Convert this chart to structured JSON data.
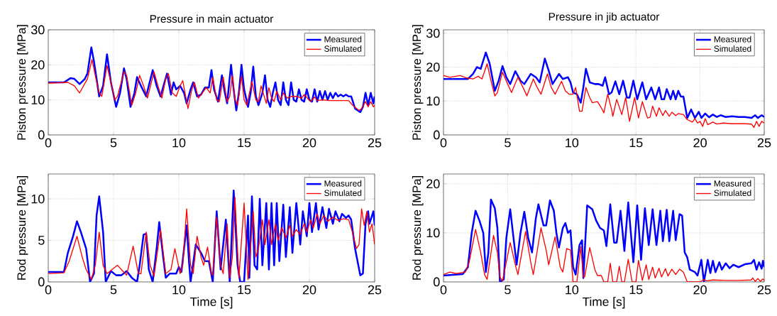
{
  "chart_data": [
    {
      "type": "line",
      "title": "Pressure in main actuator",
      "ylabel": "Piston pressure [MPa]",
      "xlim": [
        0,
        25
      ],
      "ylim": [
        0,
        30
      ],
      "xticks": [
        0,
        5,
        10,
        15,
        20,
        25
      ],
      "yticks": [
        0,
        10,
        20,
        30
      ],
      "grid": true,
      "legend": "top right",
      "series": [
        {
          "name": "Measured",
          "color": "#0000ff",
          "x": [
            0,
            1.2,
            1.7,
            2,
            2.4,
            2.8,
            3.0,
            3.3,
            3.5,
            3.9,
            4.2,
            4.5,
            4.8,
            5.2,
            5.5,
            5.8,
            6.0,
            6.3,
            6.6,
            6.8,
            7.1,
            7.5,
            7.7,
            8.0,
            8.3,
            8.6,
            8.9,
            9.1,
            9.4,
            9.6,
            9.8,
            10.1,
            10.4,
            10.6,
            10.9,
            11.1,
            11.4,
            11.7,
            12.0,
            12.3,
            12.5,
            12.7,
            13.0,
            13.3,
            13.5,
            13.7,
            14.0,
            14.2,
            14.4,
            14.6,
            14.8,
            15.0,
            15.3,
            15.5,
            15.7,
            15.9,
            16.1,
            16.4,
            16.6,
            16.8,
            17.0,
            17.2,
            17.4,
            17.6,
            17.8,
            18.0,
            18.2,
            18.4,
            18.6,
            18.8,
            19.0,
            19.2,
            19.4,
            19.6,
            19.8,
            20.0,
            20.2,
            20.4,
            20.6,
            20.8,
            21.0,
            21.2,
            21.4,
            21.6,
            21.8,
            22.0,
            22.2,
            22.4,
            22.6,
            22.8,
            23.0,
            23.2,
            23.5,
            23.9,
            24.1,
            24.3,
            24.5,
            24.7,
            24.9,
            25.0
          ],
          "values": [
            15,
            15,
            16.2,
            16,
            14.5,
            16,
            17.5,
            25,
            21,
            11,
            14,
            23,
            15,
            8,
            12,
            19,
            16,
            8,
            12,
            16.5,
            14,
            11,
            14,
            18.5,
            14,
            11,
            15,
            17.5,
            11.5,
            15,
            13,
            14,
            12,
            9,
            13,
            15,
            11,
            11.5,
            13.5,
            13.5,
            18.5,
            13,
            9.5,
            17,
            12.5,
            9,
            20,
            13,
            7,
            12,
            20,
            13,
            8,
            12,
            19.5,
            11,
            8.5,
            12,
            17,
            10,
            8,
            12,
            15,
            10,
            8.5,
            15,
            10,
            8.5,
            15,
            10,
            9.5,
            13,
            10,
            9.5,
            13,
            10,
            9.5,
            13,
            9.5,
            12.5,
            10,
            12.5,
            10,
            12,
            10.5,
            12,
            11,
            11.5,
            11,
            11.5,
            11,
            11,
            7.5,
            6.5,
            8,
            12,
            8.5,
            12,
            9,
            11
          ]
        },
        {
          "name": "Simulated",
          "color": "#ff0000",
          "x": [
            0,
            1.5,
            2.0,
            2.4,
            2.7,
            3.0,
            3.35,
            3.6,
            3.9,
            4.1,
            4.5,
            4.8,
            5.1,
            5.3,
            5.8,
            6.0,
            6.4,
            6.7,
            7.0,
            7.3,
            7.6,
            8.1,
            8.4,
            8.7,
            9.0,
            9.2,
            9.5,
            9.8,
            10.1,
            10.3,
            10.7,
            11.0,
            11.2,
            11.5,
            11.9,
            12.1,
            12.4,
            12.6,
            12.9,
            13.1,
            13.4,
            13.7,
            13.9,
            14.1,
            14.3,
            14.5,
            14.8,
            15.0,
            15.2,
            15.6,
            15.9,
            16.1,
            16.3,
            16.5,
            16.7,
            16.9,
            17.1,
            17.3,
            17.5,
            17.8,
            18.0,
            18.3,
            18.6,
            19.0,
            19.4,
            19.6,
            20.1,
            20.4,
            20.6,
            21.0,
            21.5,
            22.0,
            23.0,
            23.3,
            23.8,
            24.0,
            24.3,
            24.5,
            24.7,
            24.9,
            25.0
          ],
          "values": [
            14.8,
            15,
            14,
            12,
            14,
            16,
            21.5,
            17,
            12,
            11,
            19.8,
            15,
            10,
            11,
            18,
            17,
            8.5,
            12,
            17,
            14,
            10.5,
            18,
            14,
            10.5,
            16,
            17.5,
            12,
            11,
            14,
            15.5,
            7.5,
            13,
            15,
            10.5,
            12.5,
            13.5,
            12,
            16.5,
            10,
            9.5,
            16.5,
            9.5,
            11,
            17,
            10,
            8.5,
            16.8,
            10,
            8.5,
            15.2,
            10,
            9.5,
            14,
            11.5,
            9,
            13.5,
            10.5,
            9.5,
            12.5,
            10,
            12,
            10.5,
            11,
            11,
            10.5,
            11.5,
            9.5,
            10.8,
            9.8,
            10,
            9.8,
            9.8,
            9.8,
            8.5,
            7,
            7.5,
            9.5,
            8,
            9.5,
            8,
            8.5
          ]
        }
      ]
    },
    {
      "type": "line",
      "title": "Pressure in jib actuator",
      "ylabel": "Piston pressure [MPa]",
      "xlim": [
        0,
        25
      ],
      "ylim": [
        0,
        31
      ],
      "xticks": [
        0,
        5,
        10,
        15,
        20,
        25
      ],
      "yticks": [
        0,
        10,
        20,
        30
      ],
      "grid": true,
      "legend": "top right",
      "series": [
        {
          "name": "Measured",
          "color": "#0000ff",
          "x": [
            0,
            1.9,
            2.3,
            2.6,
            2.9,
            3.3,
            3.6,
            4.0,
            4.3,
            4.6,
            4.9,
            5.2,
            5.6,
            6.0,
            6.3,
            6.8,
            7.2,
            7.5,
            7.9,
            8.2,
            8.5,
            9.0,
            9.3,
            9.7,
            9.9,
            10.1,
            10.4,
            10.7,
            10.9,
            11.1,
            11.4,
            11.8,
            12.1,
            12.4,
            12.6,
            12.9,
            13.1,
            13.4,
            13.7,
            14.0,
            14.3,
            14.5,
            14.8,
            15.1,
            15.5,
            15.8,
            16.2,
            16.5,
            16.8,
            17.0,
            17.2,
            17.4,
            17.7,
            17.9,
            18.1,
            18.3,
            18.5,
            18.7,
            19.0,
            19.3,
            19.6,
            19.9,
            20.1,
            20.4,
            20.7,
            21.0,
            21.3,
            21.6,
            22.0,
            22.5,
            23.0,
            23.5,
            24.0,
            24.3,
            24.5,
            24.8,
            25.0
          ],
          "values": [
            16.5,
            16.5,
            18,
            20,
            19.5,
            24.3,
            21,
            13,
            16,
            20.3,
            17,
            15,
            18.8,
            16,
            15,
            18,
            17,
            15.5,
            22.5,
            19,
            15,
            18,
            16.5,
            17,
            15.5,
            12.5,
            12,
            9.5,
            14,
            19.5,
            15.5,
            15,
            15,
            14.5,
            17,
            12,
            12.5,
            15.8,
            12,
            16,
            11,
            11,
            16,
            10.5,
            15.5,
            10.5,
            14,
            10.5,
            14,
            10.5,
            10.5,
            13.5,
            10.5,
            13,
            10.5,
            13,
            11.3,
            11.3,
            5,
            7.5,
            5,
            6.8,
            5,
            6.3,
            5.2,
            6,
            5.3,
            5.8,
            5.3,
            5.5,
            5.3,
            5.3,
            5,
            5.8,
            5,
            5.8,
            5.3
          ]
        },
        {
          "name": "Simulated",
          "color": "#ff0000",
          "x": [
            0,
            0.5,
            1.3,
            1.8,
            2.3,
            2.7,
            3.0,
            3.4,
            3.7,
            4.0,
            4.2,
            4.6,
            5.0,
            5.3,
            5.8,
            6.2,
            6.5,
            7.0,
            7.3,
            7.6,
            8.1,
            8.4,
            8.7,
            9.2,
            9.5,
            9.8,
            10.1,
            10.3,
            10.6,
            10.8,
            11.1,
            11.4,
            11.6,
            12.0,
            12.3,
            12.5,
            12.8,
            13.1,
            13.2,
            13.5,
            13.9,
            14.2,
            14.5,
            14.9,
            15.2,
            15.5,
            15.9,
            16.1,
            16.3,
            16.6,
            16.8,
            17.1,
            17.3,
            17.6,
            17.8,
            18.1,
            18.3,
            18.7,
            19.0,
            19.4,
            19.6,
            19.8,
            20.0,
            20.2,
            20.4,
            20.6,
            21.0,
            21.3,
            21.8,
            22.5,
            23.5,
            24.0,
            24.2,
            24.4,
            24.6,
            24.8,
            25.0
          ],
          "values": [
            17.5,
            17,
            17.5,
            16.8,
            16.5,
            17.3,
            16.5,
            21,
            16,
            11.5,
            12.5,
            18.5,
            15,
            12.5,
            17,
            14,
            11.5,
            16.5,
            14,
            12,
            18,
            14,
            12,
            15.8,
            13,
            12,
            12,
            14,
            7,
            7,
            14,
            11,
            9.5,
            9.8,
            8,
            6.5,
            12,
            7.5,
            5.5,
            10.5,
            6,
            11,
            4,
            11,
            5,
            9.8,
            5,
            5.2,
            8.5,
            5.5,
            8,
            5.7,
            7.2,
            5.5,
            6.7,
            5.7,
            6.3,
            6,
            4.5,
            3.8,
            4.8,
            3.5,
            4,
            2.5,
            4.8,
            3,
            3.8,
            3.2,
            3.5,
            3.3,
            3.3,
            3.2,
            2.2,
            4,
            2.5,
            4,
            3.5
          ]
        }
      ]
    },
    {
      "type": "line",
      "xlabel": "Time [s]",
      "ylabel": "Rod pressure [MPa]",
      "xlim": [
        0,
        25
      ],
      "ylim": [
        0,
        13
      ],
      "xticks": [
        0,
        5,
        10,
        15,
        20,
        25
      ],
      "yticks": [
        0,
        5,
        10
      ],
      "grid": true,
      "legend": "top right",
      "series": [
        {
          "name": "Measured",
          "color": "#0000ff",
          "x": [
            0,
            1.2,
            1.5,
            1.9,
            2.2,
            2.5,
            2.9,
            3.2,
            3.5,
            3.7,
            3.9,
            4.2,
            4.4,
            4.8,
            5.2,
            5.6,
            6.0,
            6.4,
            6.8,
            7.0,
            7.3,
            7.5,
            7.7,
            8.0,
            8.3,
            8.5,
            8.8,
            9.0,
            9.3,
            9.8,
            10.0,
            10.2,
            10.6,
            10.8,
            10.9,
            11.3,
            11.7,
            12.0,
            12.3,
            12.6,
            12.9,
            13.2,
            13.6,
            13.9,
            14.2,
            14.5,
            14.7,
            15.0,
            15.3,
            15.4,
            15.6,
            15.8,
            16.0,
            16.2,
            16.4,
            16.7,
            16.9,
            17.1,
            17.3,
            17.5,
            17.7,
            18.0,
            18.2,
            18.5,
            18.7,
            19.0,
            19.3,
            19.5,
            19.8,
            20.0,
            20.2,
            20.5,
            20.7,
            21.0,
            21.3,
            21.5,
            21.8,
            22.0,
            22.3,
            22.5,
            22.8,
            23.0,
            23.2,
            23.5,
            23.9,
            24.1,
            24.3,
            24.5,
            24.6,
            24.9,
            25.0
          ],
          "values": [
            1.2,
            1.2,
            3.5,
            5.5,
            7.3,
            6,
            4,
            0,
            1,
            8,
            10.3,
            6,
            0,
            1.3,
            0.8,
            0.8,
            1.3,
            0.5,
            0,
            2,
            5.7,
            5.8,
            1.5,
            0,
            4,
            7.2,
            3,
            0.5,
            1,
            1,
            1.8,
            1.2,
            6.8,
            2,
            0,
            4.5,
            3.5,
            2.5,
            2.5,
            0,
            8.5,
            1.5,
            7.5,
            0,
            11,
            2,
            0,
            0,
            8,
            0.5,
            10.3,
            2,
            1.5,
            10,
            2,
            9.5,
            1.5,
            9.5,
            2,
            9.5,
            2.5,
            9.3,
            3,
            9,
            3.5,
            9.5,
            4.5,
            8.5,
            5.5,
            9.5,
            6,
            9.5,
            6.3,
            9,
            6.5,
            8.8,
            7,
            8.5,
            7.3,
            8.2,
            7.7,
            8,
            7.5,
            4,
            0.8,
            1,
            7,
            8.5,
            7,
            8.5,
            6.8
          ]
        },
        {
          "name": "Simulated",
          "color": "#ff0000",
          "x": [
            0,
            1.2,
            1.6,
            2.2,
            2.6,
            2.9,
            3.3,
            3.6,
            3.9,
            4.2,
            4.5,
            5.3,
            5.6,
            6.0,
            6.5,
            6.9,
            7.1,
            7.5,
            7.8,
            8.1,
            8.6,
            9.0,
            9.4,
            9.7,
            10.1,
            10.3,
            10.6,
            10.9,
            11.1,
            11.4,
            11.7,
            11.9,
            12.2,
            12.5,
            12.6,
            12.9,
            13.2,
            13.4,
            13.7,
            13.9,
            14.1,
            14.3,
            14.6,
            15.0,
            15.3,
            15.7,
            15.9,
            16.1,
            16.4,
            16.6,
            16.9,
            17.1,
            17.4,
            17.6,
            17.9,
            18.2,
            18.5,
            18.7,
            19.0,
            19.3,
            19.6,
            19.8,
            20.1,
            20.3,
            20.6,
            20.8,
            21.1,
            21.4,
            21.8,
            22.2,
            22.6,
            23.0,
            23.3,
            23.6,
            23.8,
            24.0,
            24.2,
            24.4,
            24.6,
            24.8,
            25.0
          ],
          "values": [
            1,
            1.1,
            2.5,
            5.5,
            3,
            1.5,
            0.3,
            2,
            6,
            2,
            1,
            2,
            1.5,
            0.8,
            4.3,
            1,
            1,
            6,
            2,
            0.7,
            6.3,
            1,
            1.5,
            4,
            1,
            2,
            8.8,
            2,
            1,
            5.5,
            3,
            2,
            4.2,
            1,
            0.8,
            7.8,
            2,
            1,
            7,
            0.5,
            3,
            10.2,
            0.5,
            9.5,
            0.3,
            8.5,
            3,
            4,
            7.5,
            4.5,
            7.5,
            4.5,
            7,
            5,
            6.5,
            5.3,
            6.8,
            5.5,
            6.3,
            5.7,
            7,
            6,
            7.5,
            6.5,
            8.2,
            7,
            8,
            7.3,
            7.8,
            7.4,
            7.6,
            7.5,
            6,
            4,
            4.5,
            8.8,
            6.8,
            8.5,
            6,
            7,
            4.5
          ]
        }
      ]
    },
    {
      "type": "line",
      "xlabel": "Time [s]",
      "ylabel": "Rod pressure [MPa]",
      "xlim": [
        0,
        25
      ],
      "ylim": [
        0,
        22
      ],
      "xticks": [
        0,
        5,
        10,
        15,
        20,
        25
      ],
      "yticks": [
        0,
        10,
        20
      ],
      "grid": true,
      "legend": "top right",
      "series": [
        {
          "name": "Measured",
          "color": "#0000ff",
          "x": [
            0,
            1.5,
            1.9,
            2.2,
            2.5,
            2.8,
            3.1,
            3.3,
            3.5,
            3.7,
            4.0,
            4.2,
            4.4,
            4.7,
            4.9,
            5.2,
            5.5,
            5.7,
            6.0,
            6.3,
            6.6,
            6.9,
            7.2,
            7.4,
            7.8,
            8.0,
            8.3,
            8.6,
            8.8,
            9.0,
            9.3,
            9.5,
            9.7,
            9.9,
            10.1,
            10.3,
            10.6,
            10.8,
            10.9,
            11.2,
            11.6,
            11.9,
            12.2,
            12.5,
            12.7,
            13.0,
            13.3,
            13.5,
            13.8,
            14.1,
            14.4,
            14.8,
            15.1,
            15.4,
            15.7,
            16.0,
            16.3,
            16.6,
            16.9,
            17.1,
            17.4,
            17.6,
            17.9,
            18.1,
            18.4,
            18.6,
            18.8,
            19.0,
            19.2,
            19.6,
            19.8,
            20.1,
            20.3,
            20.6,
            20.8,
            21.0,
            21.2,
            21.5,
            21.7,
            22.0,
            22.3,
            22.6,
            23.0,
            23.5,
            24.0,
            24.2,
            24.4,
            24.6,
            24.8,
            24.9,
            25.0
          ],
          "values": [
            1.3,
            1.6,
            3,
            10,
            14.5,
            12.5,
            10,
            2,
            6,
            16.8,
            15,
            11,
            0,
            0.5,
            9,
            14.8,
            8,
            3.5,
            10,
            14.3,
            9,
            6,
            13,
            15.8,
            11.5,
            11.5,
            16.6,
            14.5,
            10,
            7,
            11,
            12,
            10,
            10.5,
            3,
            1.5,
            7.5,
            8.5,
            0.8,
            15.6,
            14.8,
            12.5,
            11,
            10.5,
            7.3,
            15.8,
            8,
            8,
            14.5,
            6.3,
            16.2,
            4,
            15.6,
            4.5,
            15,
            7.5,
            14.8,
            7.5,
            14.5,
            8.3,
            14.7,
            8.3,
            14.5,
            8.5,
            13.8,
            13.5,
            6,
            5,
            2.5,
            2,
            1.3,
            4.5,
            0,
            4.5,
            1.8,
            4.3,
            2,
            4,
            2.5,
            3.8,
            2.8,
            3.5,
            3,
            3.6,
            3.8,
            4.5,
            2.5,
            4,
            2.7,
            4.3,
            3
          ]
        },
        {
          "name": "Simulated",
          "color": "#ff0000",
          "x": [
            0,
            0.5,
            1.0,
            1.7,
            2.0,
            2.5,
            2.9,
            3.2,
            3.4,
            3.9,
            4.2,
            4.4,
            4.6,
            5.2,
            5.6,
            5.8,
            6.4,
            6.8,
            7.0,
            7.6,
            8.0,
            8.2,
            8.7,
            9.1,
            9.3,
            9.6,
            9.9,
            10.1,
            10.4,
            10.7,
            10.9,
            11.0,
            11.4,
            11.8,
            12.0,
            12.3,
            12.5,
            12.8,
            13.0,
            13.2,
            13.5,
            13.7,
            13.9,
            14.1,
            14.4,
            14.7,
            15.0,
            15.2,
            15.5,
            15.8,
            16.0,
            16.3,
            16.5,
            16.8,
            17.0,
            17.3,
            17.5,
            17.8,
            18.1,
            18.4,
            18.7,
            19.0,
            20.0,
            20.3,
            20.5,
            21.0,
            22.0,
            23.0,
            24.0,
            24.1,
            24.3,
            24.5,
            24.7,
            24.9,
            25.0
          ],
          "values": [
            1.5,
            2,
            1.7,
            2,
            4,
            10.7,
            6,
            1.5,
            0.5,
            9.5,
            6,
            1,
            0.2,
            8,
            3.5,
            1.5,
            10.3,
            4,
            1.5,
            11,
            6.5,
            3.5,
            9.2,
            3,
            2,
            6.8,
            6.5,
            0,
            0,
            7.2,
            1,
            1,
            7,
            2.5,
            1.3,
            1.3,
            0,
            0,
            3.8,
            0,
            0,
            3.2,
            0,
            0,
            4.6,
            0,
            0,
            4.4,
            0.3,
            3.5,
            0.5,
            3,
            0.8,
            2.8,
            1,
            2.7,
            1.2,
            2.6,
            1.5,
            2.6,
            2,
            0,
            0,
            0.5,
            0.2,
            0.4,
            0.3,
            0.3,
            0.4,
            0.8,
            0.1,
            0.7,
            0.1,
            0.6,
            0.3
          ]
        }
      ]
    }
  ]
}
